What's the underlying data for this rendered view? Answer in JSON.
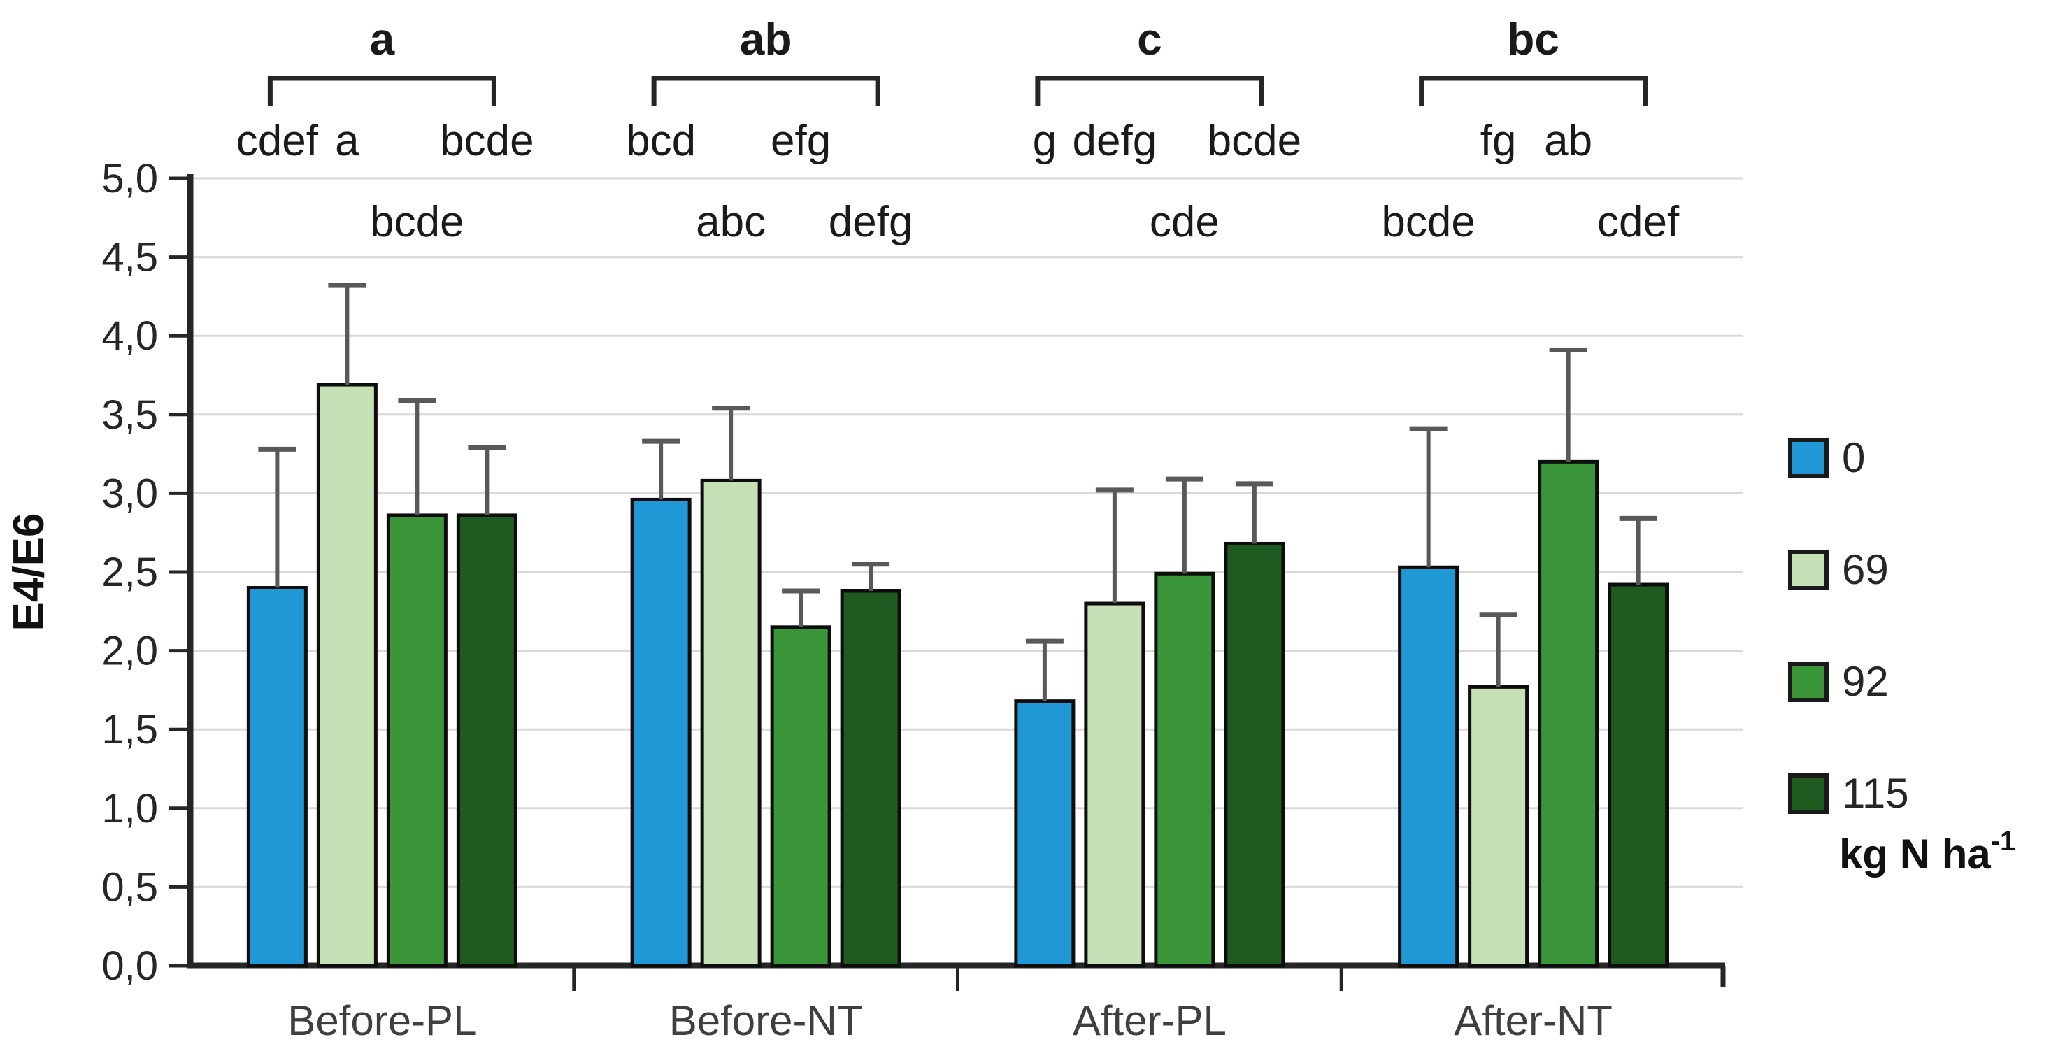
{
  "chart_data": {
    "type": "bar",
    "title": "",
    "ylabel": "E4/E6",
    "xlabel": "",
    "ylim": [
      0,
      5
    ],
    "ytick_step": 0.5,
    "decimal_separator": ",",
    "grid": true,
    "legend_position": "right",
    "legend_title_base": "kg N ha",
    "legend_title_sup": "-1",
    "categories": [
      "Before-PL",
      "Before-NT",
      "After-PL",
      "After-NT"
    ],
    "group_significance": [
      "a",
      "ab",
      "c",
      "bc"
    ],
    "series": [
      {
        "name": "0",
        "color": "#2098d5",
        "values": [
          2.4,
          2.96,
          1.68,
          2.53
        ],
        "error_plus": [
          0.88,
          0.37,
          0.38,
          0.88
        ],
        "letters": [
          "cdef",
          "bcd",
          "g",
          "bcde"
        ],
        "letter_row": [
          1,
          1,
          1,
          2
        ]
      },
      {
        "name": "69",
        "color": "#c5e0b4",
        "values": [
          3.69,
          3.08,
          2.3,
          1.77
        ],
        "error_plus": [
          0.63,
          0.46,
          0.72,
          0.46
        ],
        "letters": [
          "a",
          "abc",
          "defg",
          "fg"
        ],
        "letter_row": [
          1,
          2,
          1,
          1
        ]
      },
      {
        "name": "92",
        "color": "#3a9639",
        "values": [
          2.86,
          2.15,
          2.49,
          3.2
        ],
        "error_plus": [
          0.73,
          0.23,
          0.6,
          0.71
        ],
        "letters": [
          "bcde",
          "efg",
          "cde",
          "ab"
        ],
        "letter_row": [
          2,
          1,
          2,
          1
        ]
      },
      {
        "name": "115",
        "color": "#1f5b21",
        "values": [
          2.86,
          2.38,
          2.68,
          2.42
        ],
        "error_plus": [
          0.43,
          0.17,
          0.38,
          0.42
        ],
        "letters": [
          "bcde",
          "defg",
          "bcde",
          "cdef"
        ],
        "letter_row": [
          1,
          2,
          1,
          2
        ]
      }
    ],
    "colors": {
      "gridline": "#d9d9d9",
      "axis": "#262626",
      "error_bar": "#595959",
      "bar_outline": "#0d0d0d",
      "tick_label": "#262626",
      "category_label": "#3f3f3f",
      "letter": "#1a1a1a",
      "bracket": "#262626"
    }
  }
}
